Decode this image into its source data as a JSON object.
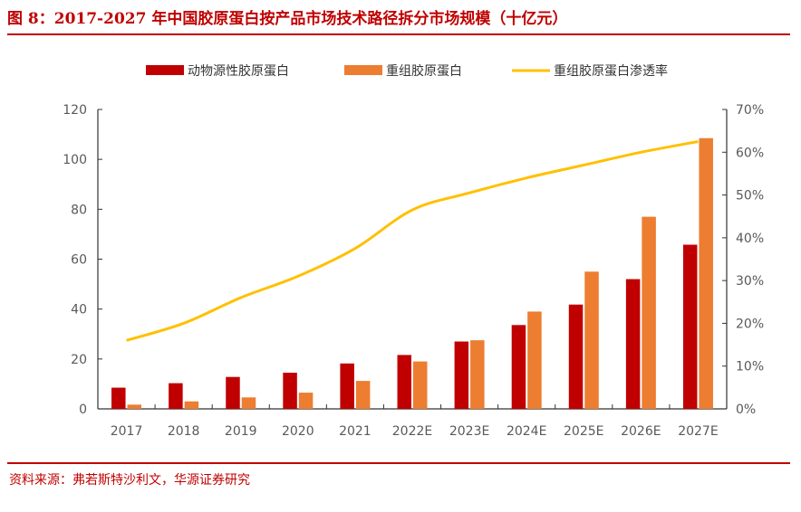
{
  "title": "图 8：2017-2027 年中国胶原蛋白按产品市场技术路径拆分市场规模（十亿元）",
  "source": "资料来源：弗若斯特沙利文，华源证券研究",
  "chart_data": {
    "type": "bar",
    "categories": [
      "2017",
      "2018",
      "2019",
      "2020",
      "2021",
      "2022E",
      "2023E",
      "2024E",
      "2025E",
      "2026E",
      "2027E"
    ],
    "series": [
      {
        "name": "动物源性胶原蛋白",
        "type": "bar",
        "axis": "left",
        "color": "#c00000",
        "values": [
          8.5,
          10.3,
          12.8,
          14.5,
          18.2,
          21.6,
          27.0,
          33.6,
          41.8,
          52.0,
          65.8
        ]
      },
      {
        "name": "重组胶原蛋白",
        "type": "bar",
        "axis": "left",
        "color": "#ed7d31",
        "values": [
          1.7,
          3.0,
          4.6,
          6.5,
          11.2,
          19.0,
          27.5,
          39.0,
          55.0,
          77.0,
          108.5
        ]
      },
      {
        "name": "重组胶原蛋白渗透率",
        "type": "line",
        "axis": "right",
        "color": "#ffc000",
        "values": [
          16,
          20,
          26,
          31,
          37.5,
          46.5,
          50.5,
          54,
          57,
          60,
          62.5
        ]
      }
    ],
    "ylim": [
      0,
      120
    ],
    "yticks": [
      "0",
      "20",
      "40",
      "60",
      "80",
      "100",
      "120"
    ],
    "y2lim": [
      0,
      70
    ],
    "y2ticks": [
      "0%",
      "10%",
      "20%",
      "30%",
      "40%",
      "50%",
      "60%",
      "70%"
    ],
    "legend": "top",
    "grid": false
  }
}
